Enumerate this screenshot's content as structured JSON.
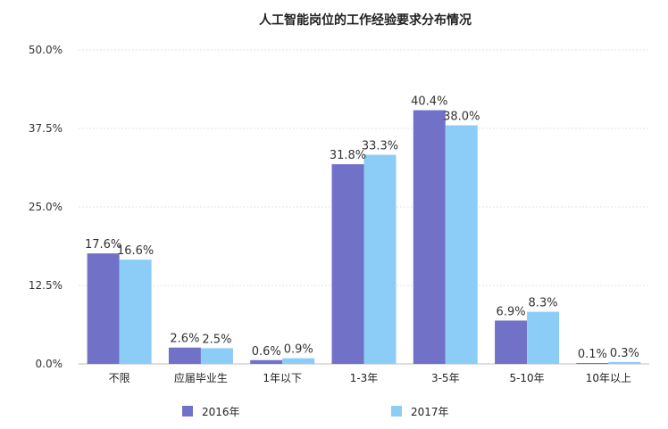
{
  "chart_data": {
    "type": "bar",
    "title": "人工智能岗位的工作经验要求分布情况",
    "categories": [
      "不限",
      "应届毕业生",
      "1年以下",
      "1-3年",
      "3-5年",
      "5-10年",
      "10年以上"
    ],
    "series": [
      {
        "name": "2016年",
        "color": "#7171c8",
        "values": [
          17.6,
          2.6,
          0.6,
          31.8,
          40.4,
          6.9,
          0.1
        ],
        "labels": [
          "17.6%",
          "2.6%",
          "0.6%",
          "31.8%",
          "40.4%",
          "6.9%",
          "0.1%"
        ]
      },
      {
        "name": "2017年",
        "color": "#8ccdf7",
        "values": [
          16.6,
          2.5,
          0.9,
          33.3,
          38.0,
          8.3,
          0.3
        ],
        "labels": [
          "16.6%",
          "2.5%",
          "0.9%",
          "33.3%",
          "38.0%",
          "8.3%",
          "0.3%"
        ]
      }
    ],
    "yticks": [
      "0.0%",
      "12.5%",
      "25.0%",
      "37.5%",
      "50.0%"
    ],
    "ytick_values": [
      0,
      12.5,
      25,
      37.5,
      50
    ],
    "ylim": [
      0,
      50
    ],
    "xlabel": "",
    "ylabel": "",
    "grid": true,
    "legend_position": "bottom"
  }
}
